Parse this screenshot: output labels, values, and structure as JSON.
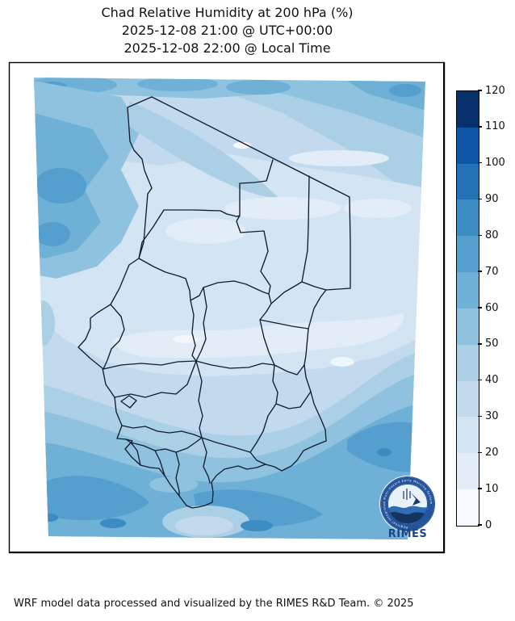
{
  "title": {
    "line1": "Chad Relative Humidity at 200 hPa (%)",
    "line2": "2025-12-08 21:00 @ UTC+00:00",
    "line3": "2025-12-08 22:00 @ Local Time"
  },
  "footer": {
    "credit": "WRF model data processed and visualized by the RIMES R&D Team. © 2025"
  },
  "logo": {
    "name": "RIMES",
    "ring_text": "Regional Integrated Multi-Hazard Early Warning System"
  },
  "colorbar": {
    "title": "",
    "units": "%",
    "tick_labels_top_to_bottom": [
      "120",
      "110",
      "100",
      "90",
      "80",
      "70",
      "60",
      "50",
      "40",
      "30",
      "20",
      "10",
      "0"
    ],
    "segments_top_to_bottom": [
      {
        "range": "110–120",
        "color": "#08306b"
      },
      {
        "range": "100–110",
        "color": "#0f57a6"
      },
      {
        "range": "90–100",
        "color": "#2272b6"
      },
      {
        "range": "80–90",
        "color": "#3c8cc3"
      },
      {
        "range": "70–80",
        "color": "#549fcd"
      },
      {
        "range": "60–70",
        "color": "#6fb0d7"
      },
      {
        "range": "50–60",
        "color": "#8fc2de"
      },
      {
        "range": "40–50",
        "color": "#abd0e6"
      },
      {
        "range": "30–40",
        "color": "#c2d9ee"
      },
      {
        "range": "20–30",
        "color": "#d3e4f3"
      },
      {
        "range": "10–20",
        "color": "#e2edf8"
      },
      {
        "range": "0–10",
        "color": "#f7fbff"
      }
    ]
  },
  "chart_data": {
    "type": "heatmap",
    "title": "Chad Relative Humidity at 200 hPa (%)",
    "valid_time_utc": "2025-12-08 21:00 @ UTC+00:00",
    "valid_time_local": "2025-12-08 22:00 @ Local Time",
    "variable": "Relative Humidity",
    "pressure_level_hPa": 200,
    "units": "%",
    "region": "Chad (admin-1 boundaries overlaid)",
    "colorbar_levels": [
      0,
      10,
      20,
      30,
      40,
      50,
      60,
      70,
      80,
      90,
      100,
      110,
      120
    ],
    "colorbar_colors_bottom_to_top": [
      "#f7fbff",
      "#e2edf8",
      "#d3e4f3",
      "#c2d9ee",
      "#abd0e6",
      "#8fc2de",
      "#6fb0d7",
      "#549fcd",
      "#3c8cc3",
      "#2272b6",
      "#0f57a6",
      "#08306b"
    ],
    "legend_position": "right",
    "observed_range_on_map": [
      0,
      90
    ],
    "pattern_summary": "Low RH (10-40%) over central and northern Chad with pale 10-20% streaks mid-map; 40-70% band along the top edge; 40-70% blobs in the far northwest; moist SW-NE bands (50-80%, local 80-90% spots) across the far south of the domain."
  }
}
